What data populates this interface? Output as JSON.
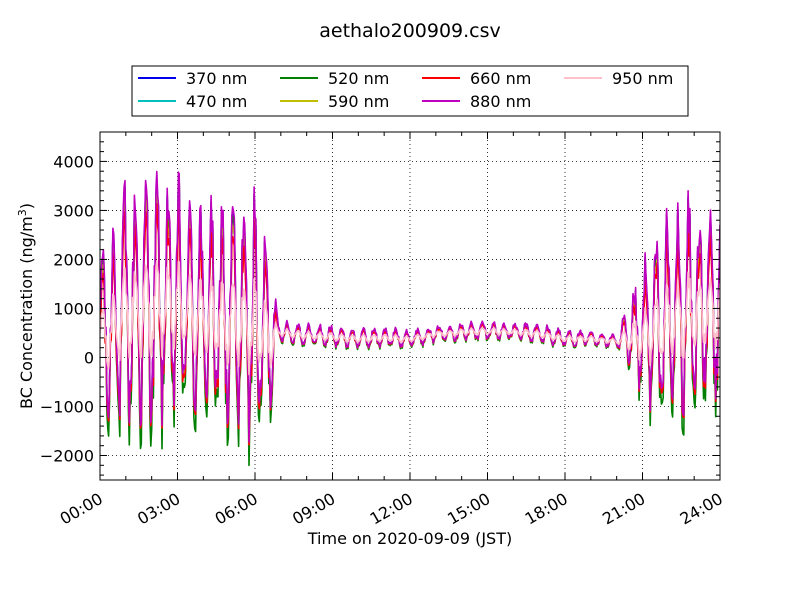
{
  "chart_data": {
    "type": "line",
    "title": "aethalo200909.csv",
    "xlabel": "Time on 2020-09-09 (JST)",
    "ylabel_prefix": "BC Concentration (ng/m",
    "ylabel_sup": "3",
    "ylabel_suffix": ")",
    "xlim": [
      "00:00",
      "24:00"
    ],
    "ylim": [
      -2500,
      4600
    ],
    "x_ticks": [
      "00:00",
      "03:00",
      "06:00",
      "09:00",
      "12:00",
      "15:00",
      "18:00",
      "21:00",
      "24:00"
    ],
    "y_ticks": [
      "−2000",
      "−1000",
      "0",
      "1000",
      "2000",
      "3000",
      "4000"
    ],
    "grid": true,
    "legend_position": "top",
    "series": [
      {
        "name": "370 nm",
        "color": "#0000ee"
      },
      {
        "name": "470 nm",
        "color": "#00bfbf"
      },
      {
        "name": "520 nm",
        "color": "#007f00"
      },
      {
        "name": "590 nm",
        "color": "#bfbf00"
      },
      {
        "name": "660 nm",
        "color": "#ff0000"
      },
      {
        "name": "880 nm",
        "color": "#bf00bf"
      },
      {
        "name": "950 nm",
        "color": "#ffc0cb"
      }
    ],
    "profile": {
      "hours": [
        0,
        1,
        2,
        3,
        4,
        5,
        6,
        6.6,
        7,
        8,
        9,
        10,
        11,
        12,
        13,
        14,
        15,
        16,
        17,
        18,
        19,
        20,
        21,
        22,
        23,
        24
      ],
      "median": [
        300,
        900,
        1000,
        1000,
        800,
        700,
        600,
        400,
        520,
        450,
        420,
        380,
        400,
        380,
        480,
        520,
        540,
        520,
        480,
        380,
        380,
        330,
        400,
        700,
        900,
        900
      ],
      "amplitude": [
        2200,
        2700,
        2900,
        2700,
        2500,
        2800,
        2900,
        1800,
        300,
        250,
        250,
        230,
        230,
        220,
        200,
        220,
        220,
        200,
        220,
        200,
        180,
        170,
        1600,
        2300,
        2500,
        2200
      ]
    }
  }
}
